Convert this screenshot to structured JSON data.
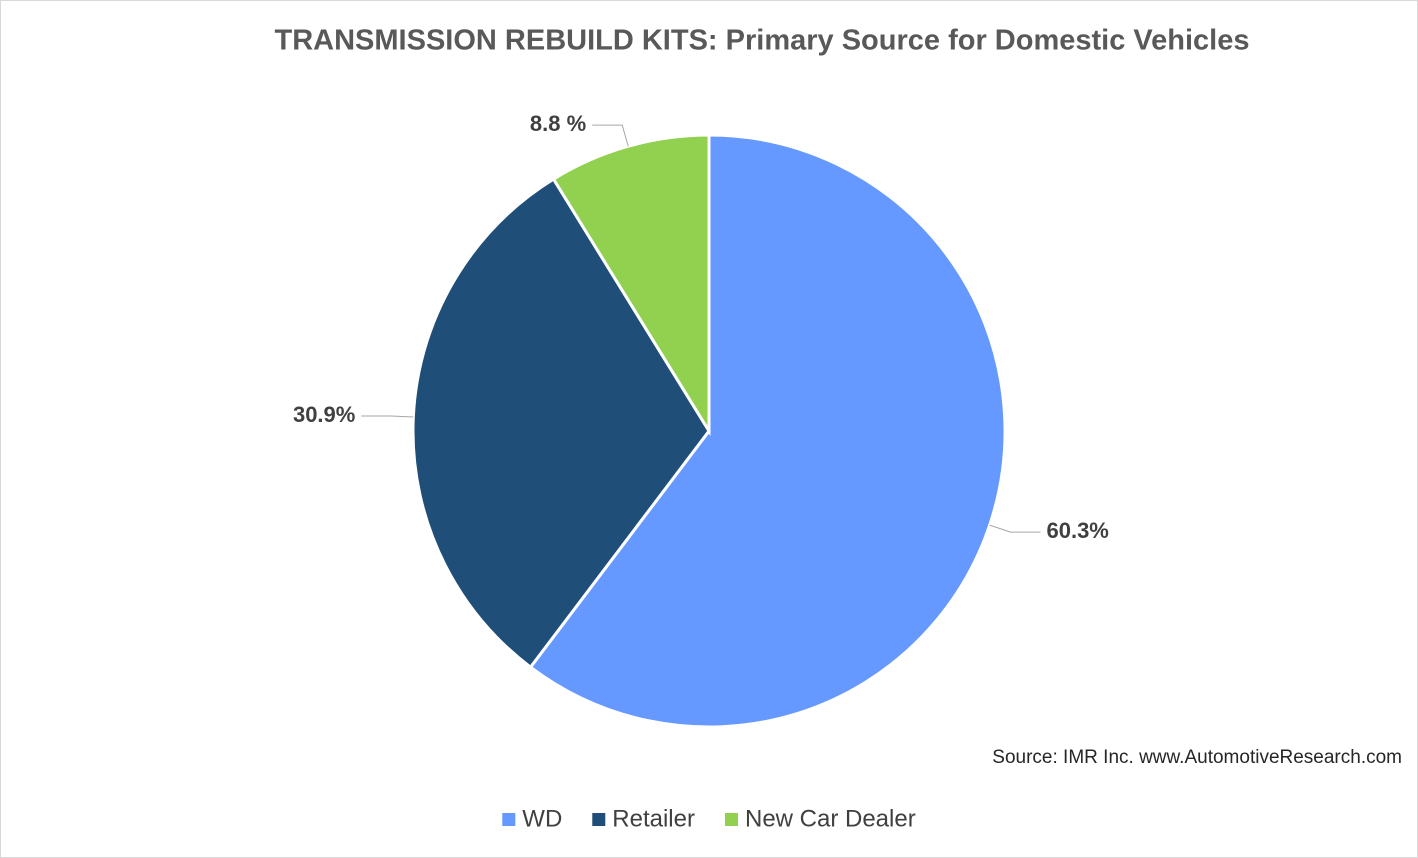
{
  "chart_data": {
    "type": "pie",
    "title": "TRANSMISSION REBUILD KITS: Primary Source for Domestic Vehicles",
    "source": "Source: IMR Inc. www.AutomotiveResearch.com",
    "series": [
      {
        "name": "WD",
        "color": "#6699ff"
      },
      {
        "name": "Retailer",
        "color": "#1f4e79"
      },
      {
        "name": "New Car Dealer",
        "color": "#92d050"
      }
    ],
    "values": [
      60.3,
      30.9,
      8.8
    ],
    "value_labels": [
      "60.3%",
      "30.9%",
      "8.8 %"
    ],
    "legend": "bottom"
  }
}
